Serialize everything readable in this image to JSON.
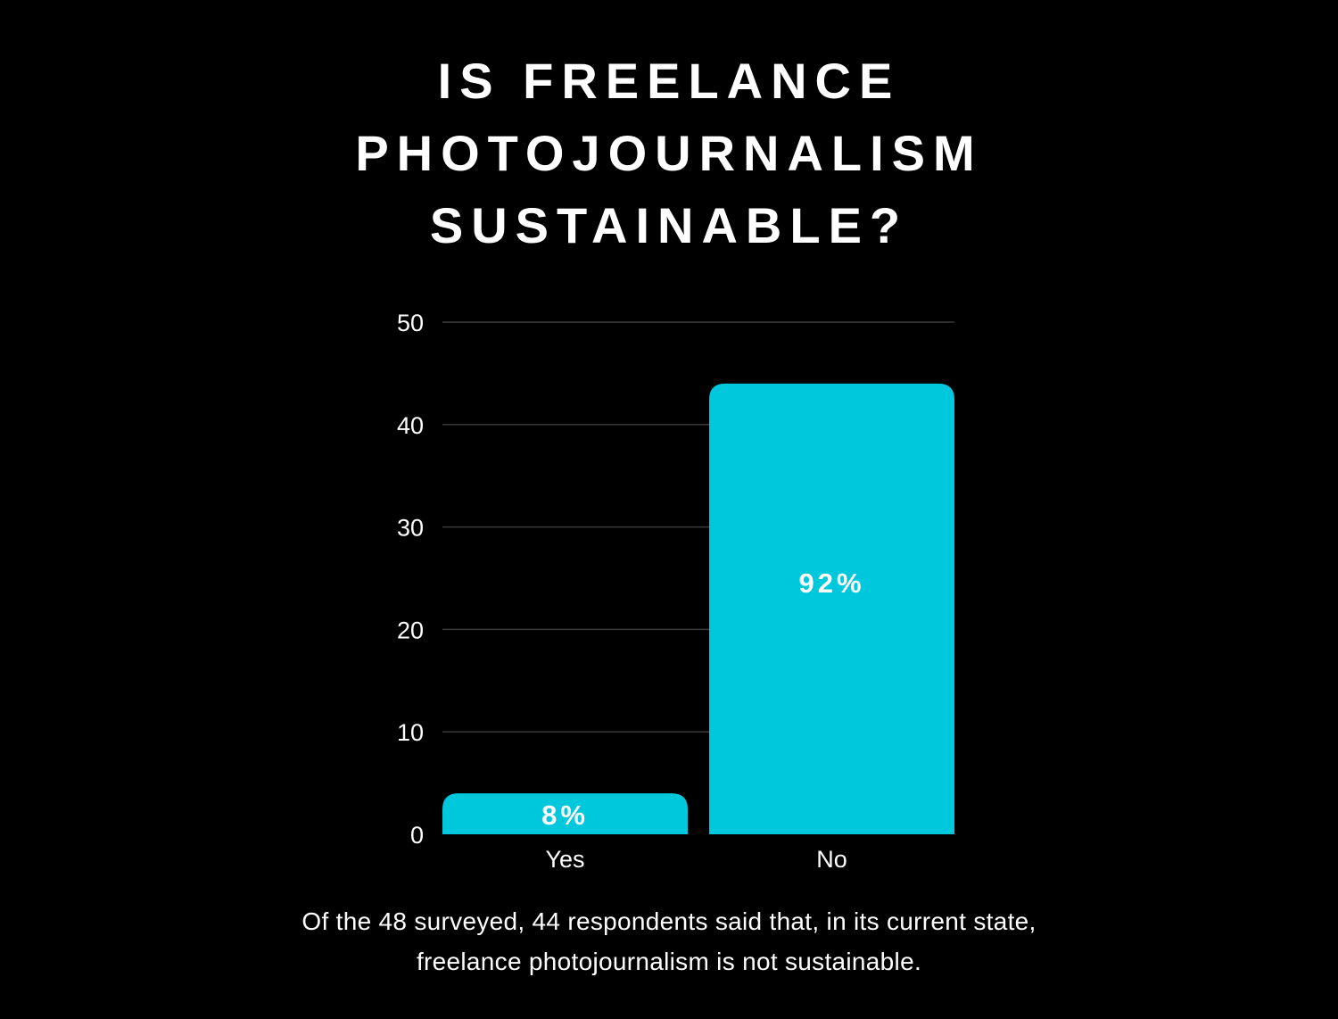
{
  "title_lines": [
    "IS FREELANCE",
    "PHOTOJOURNALISM",
    "SUSTAINABLE?"
  ],
  "caption_lines": [
    "Of the 48 surveyed, 44 respondents said that, in its current state,",
    "freelance photojournalism is not sustainable."
  ],
  "colors": {
    "background": "#000000",
    "bar": "#00c8dc",
    "grid": "#3a3a3a",
    "text": "#ffffff"
  },
  "chart_data": {
    "type": "bar",
    "title": "IS FREELANCE PHOTOJOURNALISM SUSTAINABLE?",
    "categories": [
      "Yes",
      "No"
    ],
    "values": [
      4,
      44
    ],
    "data_labels": [
      "8%",
      "92%"
    ],
    "yticks": [
      0,
      10,
      20,
      30,
      40,
      50
    ],
    "ylim": [
      0,
      50
    ],
    "xlabel": "",
    "ylabel": "",
    "grid": true,
    "legend": "none"
  }
}
